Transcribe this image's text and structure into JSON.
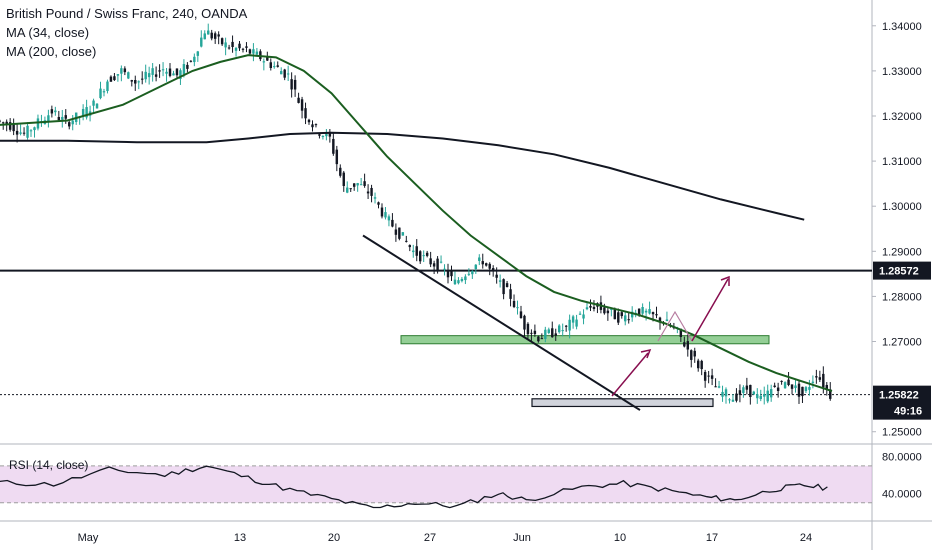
{
  "header": {
    "title": "British Pound / Swiss Franc, 240, OANDA",
    "ma_fast": "MA (34, close)",
    "ma_slow": "MA (200, close)"
  },
  "rsi": {
    "label": "RSI (14, close)",
    "ticks": [
      "80.0000",
      "40.0000"
    ],
    "upper": 70,
    "lower": 30,
    "band_color": "#e1bee7"
  },
  "colors": {
    "bull": "#26a69a",
    "bear": "#131722",
    "ma_fast": "#1b5e20",
    "ma_slow": "#131722",
    "zone": "#81c784",
    "arrow": "#880e4f",
    "rsi_line": "#131722"
  },
  "chart_data": {
    "type": "candlestick",
    "symbol": "GBPCHF",
    "timeframe": "240",
    "y_ticks": [
      "1.34000",
      "1.33000",
      "1.32000",
      "1.31000",
      "1.30000",
      "1.29000",
      "1.28000",
      "1.27000",
      "1.25000"
    ],
    "x_ticks": [
      "May",
      "13",
      "20",
      "27",
      "Jun",
      "10",
      "17",
      "24"
    ],
    "ylim": [
      1.2475,
      1.3435
    ],
    "price_labels": {
      "level": "1.28572",
      "last": "1.25822",
      "countdown": "49:16"
    },
    "horizontal_line": 1.28572,
    "resistance_zone": [
      1.2695,
      1.2713
    ],
    "support_zone": [
      1.2556,
      1.2573
    ],
    "trendline": {
      "from": [
        "May 22",
        1.2935
      ],
      "to": [
        "Jun 8",
        1.2565
      ]
    },
    "price_path": [
      {
        "d": 0,
        "p": 1.319
      },
      {
        "d": 1,
        "p": 1.318
      },
      {
        "d": 2,
        "p": 1.316
      },
      {
        "d": 3,
        "p": 1.3185
      },
      {
        "d": 4,
        "p": 1.321
      },
      {
        "d": 5,
        "p": 1.3185
      },
      {
        "d": 6,
        "p": 1.32
      },
      {
        "d": 7,
        "p": 1.3225
      },
      {
        "d": 8,
        "p": 1.328
      },
      {
        "d": 9,
        "p": 1.33
      },
      {
        "d": 10,
        "p": 1.3275
      },
      {
        "d": 11,
        "p": 1.329
      },
      {
        "d": 12,
        "p": 1.3305
      },
      {
        "d": 13,
        "p": 1.329
      },
      {
        "d": 14,
        "p": 1.332
      },
      {
        "d": 15,
        "p": 1.339
      },
      {
        "d": 16,
        "p": 1.3365
      },
      {
        "d": 17,
        "p": 1.335
      },
      {
        "d": 18,
        "p": 1.3345
      },
      {
        "d": 19,
        "p": 1.333
      },
      {
        "d": 20,
        "p": 1.331
      },
      {
        "d": 21,
        "p": 1.329
      },
      {
        "d": 22,
        "p": 1.3215
      },
      {
        "d": 23,
        "p": 1.317
      },
      {
        "d": 24,
        "p": 1.315
      },
      {
        "d": 25,
        "p": 1.304
      },
      {
        "d": 26,
        "p": 1.305
      },
      {
        "d": 27,
        "p": 1.3025
      },
      {
        "d": 28,
        "p": 1.2975
      },
      {
        "d": 29,
        "p": 1.294
      },
      {
        "d": 30,
        "p": 1.29
      },
      {
        "d": 31,
        "p": 1.288
      },
      {
        "d": 32,
        "p": 1.2865
      },
      {
        "d": 33,
        "p": 1.283
      },
      {
        "d": 34,
        "p": 1.286
      },
      {
        "d": 35,
        "p": 1.288
      },
      {
        "d": 36,
        "p": 1.2835
      },
      {
        "d": 37,
        "p": 1.28
      },
      {
        "d": 38,
        "p": 1.2735
      },
      {
        "d": 39,
        "p": 1.271
      },
      {
        "d": 40,
        "p": 1.272
      },
      {
        "d": 41,
        "p": 1.273
      },
      {
        "d": 42,
        "p": 1.276
      },
      {
        "d": 43,
        "p": 1.278
      },
      {
        "d": 44,
        "p": 1.2765
      },
      {
        "d": 45,
        "p": 1.275
      },
      {
        "d": 46,
        "p": 1.277
      },
      {
        "d": 47,
        "p": 1.276
      },
      {
        "d": 48,
        "p": 1.2745
      },
      {
        "d": 49,
        "p": 1.272
      },
      {
        "d": 50,
        "p": 1.267
      },
      {
        "d": 51,
        "p": 1.2625
      },
      {
        "d": 52,
        "p": 1.259
      },
      {
        "d": 53,
        "p": 1.2575
      },
      {
        "d": 54,
        "p": 1.2595
      },
      {
        "d": 55,
        "p": 1.257
      },
      {
        "d": 56,
        "p": 1.26
      },
      {
        "d": 57,
        "p": 1.261
      },
      {
        "d": 58,
        "p": 1.258
      },
      {
        "d": 59,
        "p": 1.263
      },
      {
        "d": 60,
        "p": 1.2582
      }
    ],
    "ma_34": [
      {
        "d": 0,
        "p": 1.318
      },
      {
        "d": 5,
        "p": 1.319
      },
      {
        "d": 9,
        "p": 1.3225
      },
      {
        "d": 12,
        "p": 1.327
      },
      {
        "d": 14,
        "p": 1.33
      },
      {
        "d": 16,
        "p": 1.332
      },
      {
        "d": 18,
        "p": 1.3335
      },
      {
        "d": 20,
        "p": 1.333
      },
      {
        "d": 22,
        "p": 1.33
      },
      {
        "d": 24,
        "p": 1.325
      },
      {
        "d": 26,
        "p": 1.318
      },
      {
        "d": 28,
        "p": 1.311
      },
      {
        "d": 30,
        "p": 1.305
      },
      {
        "d": 32,
        "p": 1.299
      },
      {
        "d": 34,
        "p": 1.2935
      },
      {
        "d": 36,
        "p": 1.289
      },
      {
        "d": 38,
        "p": 1.2845
      },
      {
        "d": 40,
        "p": 1.281
      },
      {
        "d": 42,
        "p": 1.279
      },
      {
        "d": 44,
        "p": 1.2775
      },
      {
        "d": 46,
        "p": 1.276
      },
      {
        "d": 48,
        "p": 1.274
      },
      {
        "d": 50,
        "p": 1.2715
      },
      {
        "d": 52,
        "p": 1.2685
      },
      {
        "d": 54,
        "p": 1.2655
      },
      {
        "d": 56,
        "p": 1.263
      },
      {
        "d": 58,
        "p": 1.261
      },
      {
        "d": 60,
        "p": 1.259
      }
    ],
    "ma_200": [
      {
        "d": 0,
        "p": 1.3145
      },
      {
        "d": 5,
        "p": 1.3145
      },
      {
        "d": 10,
        "p": 1.3142
      },
      {
        "d": 15,
        "p": 1.3142
      },
      {
        "d": 18,
        "p": 1.315
      },
      {
        "d": 21,
        "p": 1.316
      },
      {
        "d": 24,
        "p": 1.3163
      },
      {
        "d": 28,
        "p": 1.316
      },
      {
        "d": 32,
        "p": 1.315
      },
      {
        "d": 36,
        "p": 1.3135
      },
      {
        "d": 40,
        "p": 1.3115
      },
      {
        "d": 44,
        "p": 1.3085
      },
      {
        "d": 48,
        "p": 1.305
      },
      {
        "d": 52,
        "p": 1.3015
      },
      {
        "d": 56,
        "p": 1.2985
      },
      {
        "d": 58,
        "p": 1.297
      }
    ],
    "rsi_values": [
      {
        "d": 0,
        "v": 52
      },
      {
        "d": 4,
        "v": 50
      },
      {
        "d": 8,
        "v": 66
      },
      {
        "d": 12,
        "v": 60
      },
      {
        "d": 15,
        "v": 70
      },
      {
        "d": 18,
        "v": 57
      },
      {
        "d": 21,
        "v": 44
      },
      {
        "d": 24,
        "v": 34
      },
      {
        "d": 27,
        "v": 24
      },
      {
        "d": 30,
        "v": 30
      },
      {
        "d": 33,
        "v": 26
      },
      {
        "d": 36,
        "v": 40
      },
      {
        "d": 38,
        "v": 33
      },
      {
        "d": 42,
        "v": 47
      },
      {
        "d": 45,
        "v": 51
      },
      {
        "d": 48,
        "v": 44
      },
      {
        "d": 51,
        "v": 36
      },
      {
        "d": 53,
        "v": 33
      },
      {
        "d": 56,
        "v": 45
      },
      {
        "d": 58,
        "v": 49
      },
      {
        "d": 60,
        "v": 45
      }
    ]
  }
}
